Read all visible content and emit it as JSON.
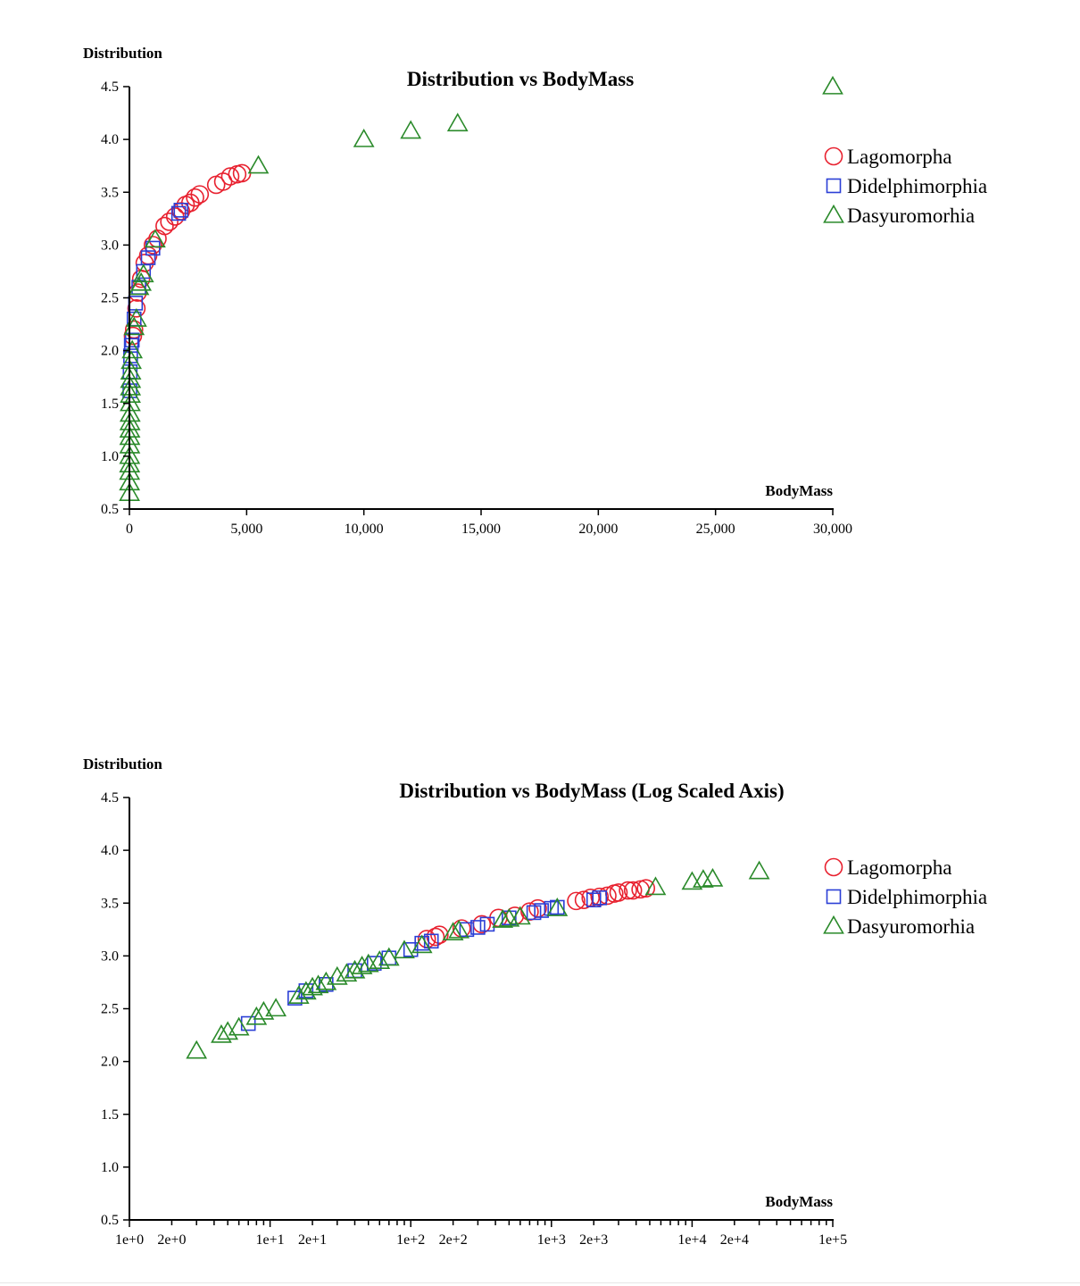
{
  "colors": {
    "Lagomorpha": "#e8212f",
    "Didelphimorphia": "#2b3fd6",
    "Dasyuromorhia": "#2a8a2a"
  },
  "legend": [
    {
      "name": "Lagomorpha",
      "shape": "circle"
    },
    {
      "name": "Didelphimorphia",
      "shape": "square"
    },
    {
      "name": "Dasyuromorhia",
      "shape": "triangle"
    }
  ],
  "chart_data": [
    {
      "type": "scatter",
      "title": "Distribution vs BodyMass",
      "xlabel": "BodyMass",
      "ylabel": "Distribution",
      "xscale": "linear",
      "xlim": [
        0,
        30000
      ],
      "ylim": [
        0.5,
        4.5
      ],
      "x_ticks": [
        0,
        5000,
        10000,
        15000,
        20000,
        25000,
        30000
      ],
      "x_tick_labels": [
        "0",
        "5,000",
        "10,000",
        "15,000",
        "20,000",
        "25,000",
        "30,000"
      ],
      "y_ticks": [
        0.5,
        1.0,
        1.5,
        2.0,
        2.5,
        3.0,
        3.5,
        4.0,
        4.5
      ],
      "y_tick_labels": [
        "0.5",
        "1.0",
        "1.5",
        "2.0",
        "2.5",
        "3.0",
        "3.5",
        "4.0",
        "4.5"
      ],
      "series": [
        {
          "name": "Lagomorpha",
          "points": [
            [
              150,
              2.14
            ],
            [
              200,
              2.2
            ],
            [
              300,
              2.4
            ],
            [
              350,
              2.55
            ],
            [
              500,
              2.68
            ],
            [
              650,
              2.83
            ],
            [
              800,
              2.9
            ],
            [
              1000,
              3.0
            ],
            [
              1200,
              3.06
            ],
            [
              1500,
              3.18
            ],
            [
              1700,
              3.22
            ],
            [
              1950,
              3.27
            ],
            [
              2200,
              3.32
            ],
            [
              2400,
              3.38
            ],
            [
              2600,
              3.4
            ],
            [
              2800,
              3.45
            ],
            [
              3000,
              3.48
            ],
            [
              3700,
              3.57
            ],
            [
              4000,
              3.6
            ],
            [
              4300,
              3.65
            ],
            [
              4600,
              3.67
            ],
            [
              4800,
              3.68
            ]
          ]
        },
        {
          "name": "Didelphimorphia",
          "points": [
            [
              20,
              1.62
            ],
            [
              30,
              1.8
            ],
            [
              50,
              1.95
            ],
            [
              80,
              2.05
            ],
            [
              120,
              2.1
            ],
            [
              200,
              2.3
            ],
            [
              260,
              2.45
            ],
            [
              400,
              2.6
            ],
            [
              600,
              2.75
            ],
            [
              800,
              2.88
            ],
            [
              1000,
              2.97
            ],
            [
              2100,
              3.3
            ],
            [
              2200,
              3.33
            ]
          ]
        },
        {
          "name": "Dasyuromorhia",
          "points": [
            [
              3,
              0.65
            ],
            [
              5,
              0.75
            ],
            [
              8,
              0.85
            ],
            [
              10,
              0.92
            ],
            [
              12,
              1.0
            ],
            [
              15,
              1.1
            ],
            [
              18,
              1.18
            ],
            [
              20,
              1.25
            ],
            [
              25,
              1.32
            ],
            [
              30,
              1.4
            ],
            [
              35,
              1.5
            ],
            [
              40,
              1.58
            ],
            [
              45,
              1.65
            ],
            [
              50,
              1.72
            ],
            [
              60,
              1.8
            ],
            [
              80,
              1.9
            ],
            [
              120,
              2.0
            ],
            [
              200,
              2.22
            ],
            [
              300,
              2.3
            ],
            [
              400,
              2.6
            ],
            [
              500,
              2.64
            ],
            [
              600,
              2.72
            ],
            [
              1100,
              3.05
            ],
            [
              5500,
              3.75
            ],
            [
              10000,
              4.0
            ],
            [
              12000,
              4.08
            ],
            [
              14000,
              4.15
            ],
            [
              30000,
              4.5
            ]
          ]
        }
      ]
    },
    {
      "type": "scatter",
      "title": "Distribution vs BodyMass (Log Scaled Axis)",
      "xlabel": "BodyMass",
      "ylabel": "Distribution",
      "xscale": "log",
      "xlim": [
        1,
        100000
      ],
      "ylim": [
        0.5,
        4.5
      ],
      "x_ticks": [
        1,
        2,
        10,
        20,
        100,
        200,
        1000,
        2000,
        10000,
        20000,
        100000
      ],
      "x_tick_labels": [
        "1e+0",
        "2e+0",
        "1e+1",
        "2e+1",
        "1e+2",
        "2e+2",
        "1e+3",
        "2e+3",
        "1e+4",
        "2e+4",
        "1e+5"
      ],
      "y_ticks": [
        0.5,
        1.0,
        1.5,
        2.0,
        2.5,
        3.0,
        3.5,
        4.0,
        4.5
      ],
      "y_tick_labels": [
        "0.5",
        "1.0",
        "1.5",
        "2.0",
        "2.5",
        "3.0",
        "3.5",
        "4.0",
        "4.5"
      ],
      "series": [
        {
          "name": "Lagomorpha",
          "points": [
            [
              130,
              3.16
            ],
            [
              150,
              3.18
            ],
            [
              160,
              3.2
            ],
            [
              230,
              3.26
            ],
            [
              320,
              3.3
            ],
            [
              420,
              3.36
            ],
            [
              550,
              3.38
            ],
            [
              700,
              3.42
            ],
            [
              800,
              3.45
            ],
            [
              1500,
              3.52
            ],
            [
              1700,
              3.53
            ],
            [
              1900,
              3.55
            ],
            [
              2200,
              3.56
            ],
            [
              2500,
              3.57
            ],
            [
              2800,
              3.59
            ],
            [
              3000,
              3.6
            ],
            [
              3500,
              3.62
            ],
            [
              3800,
              3.62
            ],
            [
              4300,
              3.63
            ],
            [
              4700,
              3.64
            ]
          ]
        },
        {
          "name": "Didelphimorphia",
          "points": [
            [
              7,
              2.36
            ],
            [
              15,
              2.6
            ],
            [
              18,
              2.67
            ],
            [
              25,
              2.73
            ],
            [
              40,
              2.86
            ],
            [
              55,
              2.93
            ],
            [
              70,
              2.98
            ],
            [
              100,
              3.06
            ],
            [
              120,
              3.12
            ],
            [
              140,
              3.14
            ],
            [
              250,
              3.25
            ],
            [
              300,
              3.27
            ],
            [
              350,
              3.3
            ],
            [
              500,
              3.36
            ],
            [
              750,
              3.41
            ],
            [
              850,
              3.43
            ],
            [
              1000,
              3.45
            ],
            [
              1100,
              3.46
            ],
            [
              2000,
              3.53
            ],
            [
              2200,
              3.55
            ]
          ]
        },
        {
          "name": "Dasyuromorhia",
          "points": [
            [
              3,
              2.1
            ],
            [
              4.5,
              2.25
            ],
            [
              5,
              2.28
            ],
            [
              6,
              2.32
            ],
            [
              8,
              2.42
            ],
            [
              9,
              2.47
            ],
            [
              11,
              2.5
            ],
            [
              16,
              2.62
            ],
            [
              18,
              2.66
            ],
            [
              20,
              2.7
            ],
            [
              22,
              2.72
            ],
            [
              25,
              2.75
            ],
            [
              30,
              2.8
            ],
            [
              35,
              2.83
            ],
            [
              40,
              2.86
            ],
            [
              45,
              2.9
            ],
            [
              50,
              2.92
            ],
            [
              60,
              2.95
            ],
            [
              70,
              2.98
            ],
            [
              90,
              3.05
            ],
            [
              120,
              3.1
            ],
            [
              200,
              3.22
            ],
            [
              220,
              3.24
            ],
            [
              450,
              3.34
            ],
            [
              500,
              3.35
            ],
            [
              600,
              3.37
            ],
            [
              1100,
              3.45
            ],
            [
              5500,
              3.65
            ],
            [
              10000,
              3.7
            ],
            [
              12000,
              3.72
            ],
            [
              14000,
              3.73
            ],
            [
              30000,
              3.8
            ]
          ]
        }
      ]
    }
  ]
}
